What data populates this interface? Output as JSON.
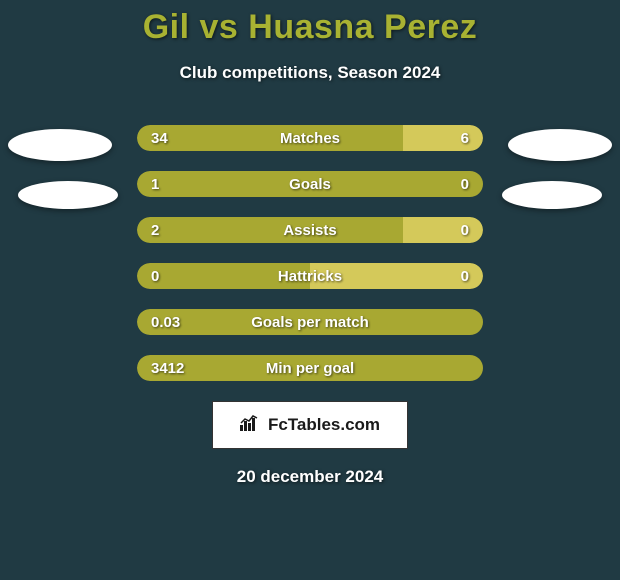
{
  "title": "Gil vs Huasna Perez",
  "subtitle": "Club competitions, Season 2024",
  "colors": {
    "background": "#203a43",
    "title": "#a8b232",
    "text": "#ffffff",
    "bar_primary": "#a8a832",
    "bar_secondary": "#d4c95a",
    "badge_bg": "#ffffff"
  },
  "typography": {
    "title_fontsize": 34,
    "subtitle_fontsize": 17,
    "stat_fontsize": 15,
    "footer_fontsize": 17
  },
  "stats": [
    {
      "label": "Matches",
      "left_value": "34",
      "right_value": "6",
      "left_width_pct": 77,
      "left_color": "#a8a832",
      "right_color": "#d4c95a"
    },
    {
      "label": "Goals",
      "left_value": "1",
      "right_value": "0",
      "left_width_pct": 100,
      "left_color": "#a8a832",
      "right_color": "#d4c95a"
    },
    {
      "label": "Assists",
      "left_value": "2",
      "right_value": "0",
      "left_width_pct": 77,
      "left_color": "#a8a832",
      "right_color": "#d4c95a"
    },
    {
      "label": "Hattricks",
      "left_value": "0",
      "right_value": "0",
      "left_width_pct": 50,
      "left_color": "#a8a832",
      "right_color": "#d4c95a"
    },
    {
      "label": "Goals per match",
      "left_value": "0.03",
      "right_value": "",
      "left_width_pct": 100,
      "left_color": "#a8a832",
      "right_color": "#d4c95a"
    },
    {
      "label": "Min per goal",
      "left_value": "3412",
      "right_value": "",
      "left_width_pct": 100,
      "left_color": "#a8a832",
      "right_color": "#d4c95a"
    }
  ],
  "footer": {
    "brand": "FcTables.com",
    "date": "20 december 2024"
  }
}
